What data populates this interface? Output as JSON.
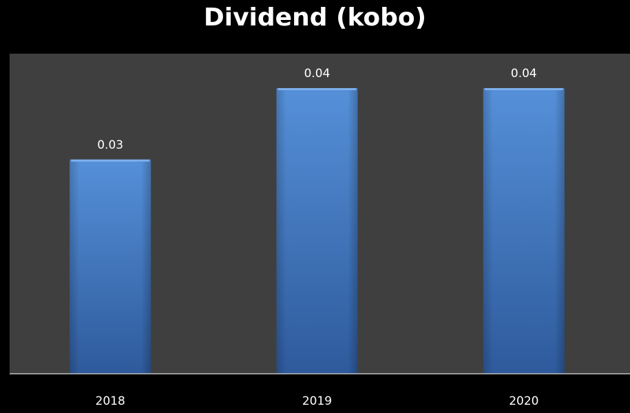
{
  "chart_data": {
    "type": "bar",
    "title": "Dividend (kobo)",
    "categories": [
      "2018",
      "2019",
      "2020"
    ],
    "values": [
      0.03,
      0.04,
      0.04
    ],
    "data_labels": [
      "0.03",
      "0.04",
      "0.04"
    ],
    "xlabel": "",
    "ylabel": "",
    "ylim": [
      0,
      0.04
    ],
    "grid": false,
    "legend": "none",
    "colors": {
      "background": "#000000",
      "plot_area": "#3f3f3f",
      "bar_light": "#5590d8",
      "bar_dark": "#2e5a9c",
      "text": "#ffffff",
      "axis": "#bfbfbf"
    }
  }
}
